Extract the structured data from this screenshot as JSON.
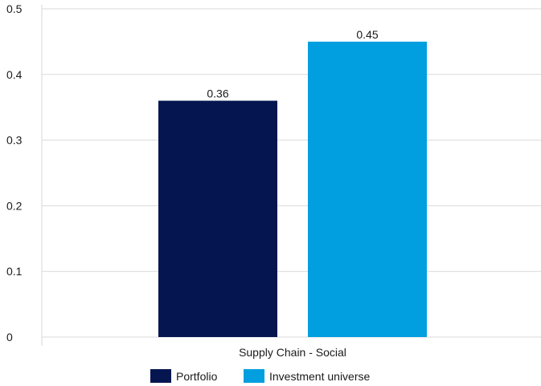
{
  "chart_data": {
    "type": "bar",
    "categories": [
      "Supply Chain - Social"
    ],
    "series": [
      {
        "name": "Portfolio",
        "values": [
          0.36
        ],
        "color": "#041550"
      },
      {
        "name": "Investment universe",
        "values": [
          0.45
        ],
        "color": "#019fe0"
      }
    ],
    "data_labels": [
      "0.36",
      "0.45"
    ],
    "yticks": [
      "0",
      "0.1",
      "0.2",
      "0.3",
      "0.4",
      "0.5"
    ],
    "ylim": [
      0,
      0.5
    ],
    "grid": true,
    "legend_position": "bottom",
    "title": "",
    "xlabel": "",
    "ylabel": ""
  }
}
